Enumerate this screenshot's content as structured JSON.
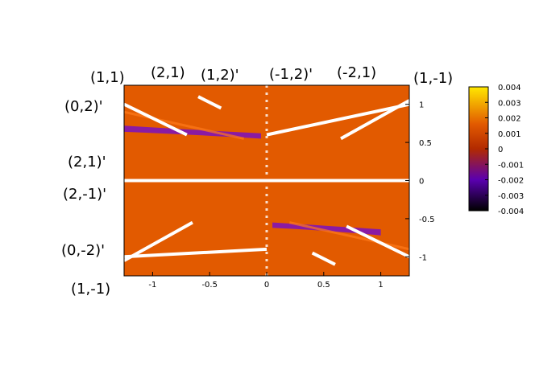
{
  "chart_data": {
    "type": "heatmap",
    "title": "",
    "xlabel": "",
    "ylabel": "",
    "xlim": [
      -1.25,
      1.25
    ],
    "ylim": [
      -1.25,
      1.25
    ],
    "x_ticks": [
      "-1",
      "-0.5",
      "0",
      "0.5",
      "1"
    ],
    "x_tick_values": [
      -1,
      -0.5,
      0,
      0.5,
      1
    ],
    "y_ticks": [
      "1",
      "0.5",
      "0",
      "-0.5",
      "-1"
    ],
    "y_tick_values": [
      1,
      0.5,
      0,
      -0.5,
      -1
    ],
    "colorbar": {
      "range": [
        -0.004,
        0.004
      ],
      "ticks": [
        "0.004",
        "0.003",
        "0.002",
        "0.001",
        "0",
        "-0.001",
        "-0.002",
        "-0.003",
        "-0.004"
      ],
      "tick_values": [
        0.004,
        0.003,
        0.002,
        0.001,
        0,
        -0.001,
        -0.002,
        -0.003,
        -0.004
      ],
      "colors": [
        "#000000",
        "#5a00b0",
        "#b22a00",
        "#e25a00",
        "#ffe800"
      ]
    },
    "background_value": 0.0006,
    "features": [
      {
        "kind": "white_line",
        "x1": -1.25,
        "y1": 0,
        "x2": 1.25,
        "y2": 0
      },
      {
        "kind": "white_line",
        "x1": 0,
        "y1": 0.6,
        "x2": 1.25,
        "y2": 1.0
      },
      {
        "kind": "white_line",
        "x1": -1.25,
        "y1": -1.0,
        "x2": 0,
        "y2": -0.9
      },
      {
        "kind": "white_line",
        "x1": -1.25,
        "y1": 1.0,
        "x2": -0.7,
        "y2": 0.6
      },
      {
        "kind": "white_line",
        "x1": 1.25,
        "y1": -1.0,
        "x2": 0.7,
        "y2": -0.6
      },
      {
        "kind": "white_line",
        "x1": -1.25,
        "y1": -1.05,
        "x2": -0.65,
        "y2": -0.55
      },
      {
        "kind": "white_line",
        "x1": 1.25,
        "y1": 1.05,
        "x2": 0.65,
        "y2": 0.55
      },
      {
        "kind": "white_line",
        "x1": -0.6,
        "y1": 1.1,
        "x2": -0.4,
        "y2": 0.95
      },
      {
        "kind": "white_line",
        "x1": 0.4,
        "y1": -0.95,
        "x2": 0.6,
        "y2": -1.1
      }
    ],
    "annotations": [
      {
        "text": "(1,1)",
        "anchor": "top-left corner"
      },
      {
        "text": "(2,1)",
        "anchor": "top"
      },
      {
        "text": "(1,2)'",
        "anchor": "top"
      },
      {
        "text": "(-1,2)'",
        "anchor": "top"
      },
      {
        "text": "(-2,1)",
        "anchor": "top"
      },
      {
        "text": "(1,-1)",
        "anchor": "top-right corner"
      },
      {
        "text": "(0,2)'",
        "anchor": "left"
      },
      {
        "text": "(2,1)'",
        "anchor": "left"
      },
      {
        "text": "(2,-1)'",
        "anchor": "left"
      },
      {
        "text": "(0,-2)'",
        "anchor": "left"
      },
      {
        "text": "(1,-1)",
        "anchor": "bottom-left corner"
      }
    ]
  }
}
